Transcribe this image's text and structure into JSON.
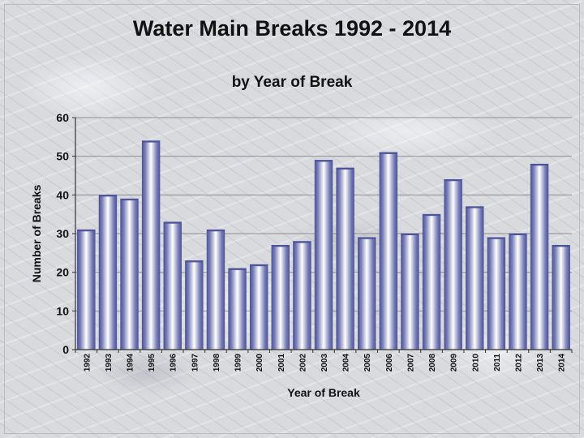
{
  "chart_data": {
    "type": "bar",
    "title": "Water Main Breaks 1992 - 2014",
    "subtitle": "by Year of Break",
    "xlabel": "Year of Break",
    "ylabel": "Number of Breaks",
    "ylim": [
      0,
      60
    ],
    "yticks": [
      0,
      10,
      20,
      30,
      40,
      50,
      60
    ],
    "grid": true,
    "categories": [
      "1992",
      "1993",
      "1994",
      "1995",
      "1996",
      "1997",
      "1998",
      "1999",
      "2000",
      "2001",
      "2002",
      "2003",
      "2004",
      "2005",
      "2006",
      "2007",
      "2008",
      "2009",
      "2010",
      "2011",
      "2012",
      "2013",
      "2014"
    ],
    "values": [
      31,
      40,
      39,
      54,
      33,
      23,
      31,
      21,
      22,
      27,
      28,
      49,
      47,
      29,
      51,
      30,
      35,
      44,
      37,
      29,
      30,
      48,
      27
    ],
    "colors": {
      "bar_edge": "#6a6fa8",
      "bar_center": "#ffffff",
      "bar_dark": "#4d5499",
      "grid": "#8c8f96",
      "axis": "#333333"
    }
  }
}
